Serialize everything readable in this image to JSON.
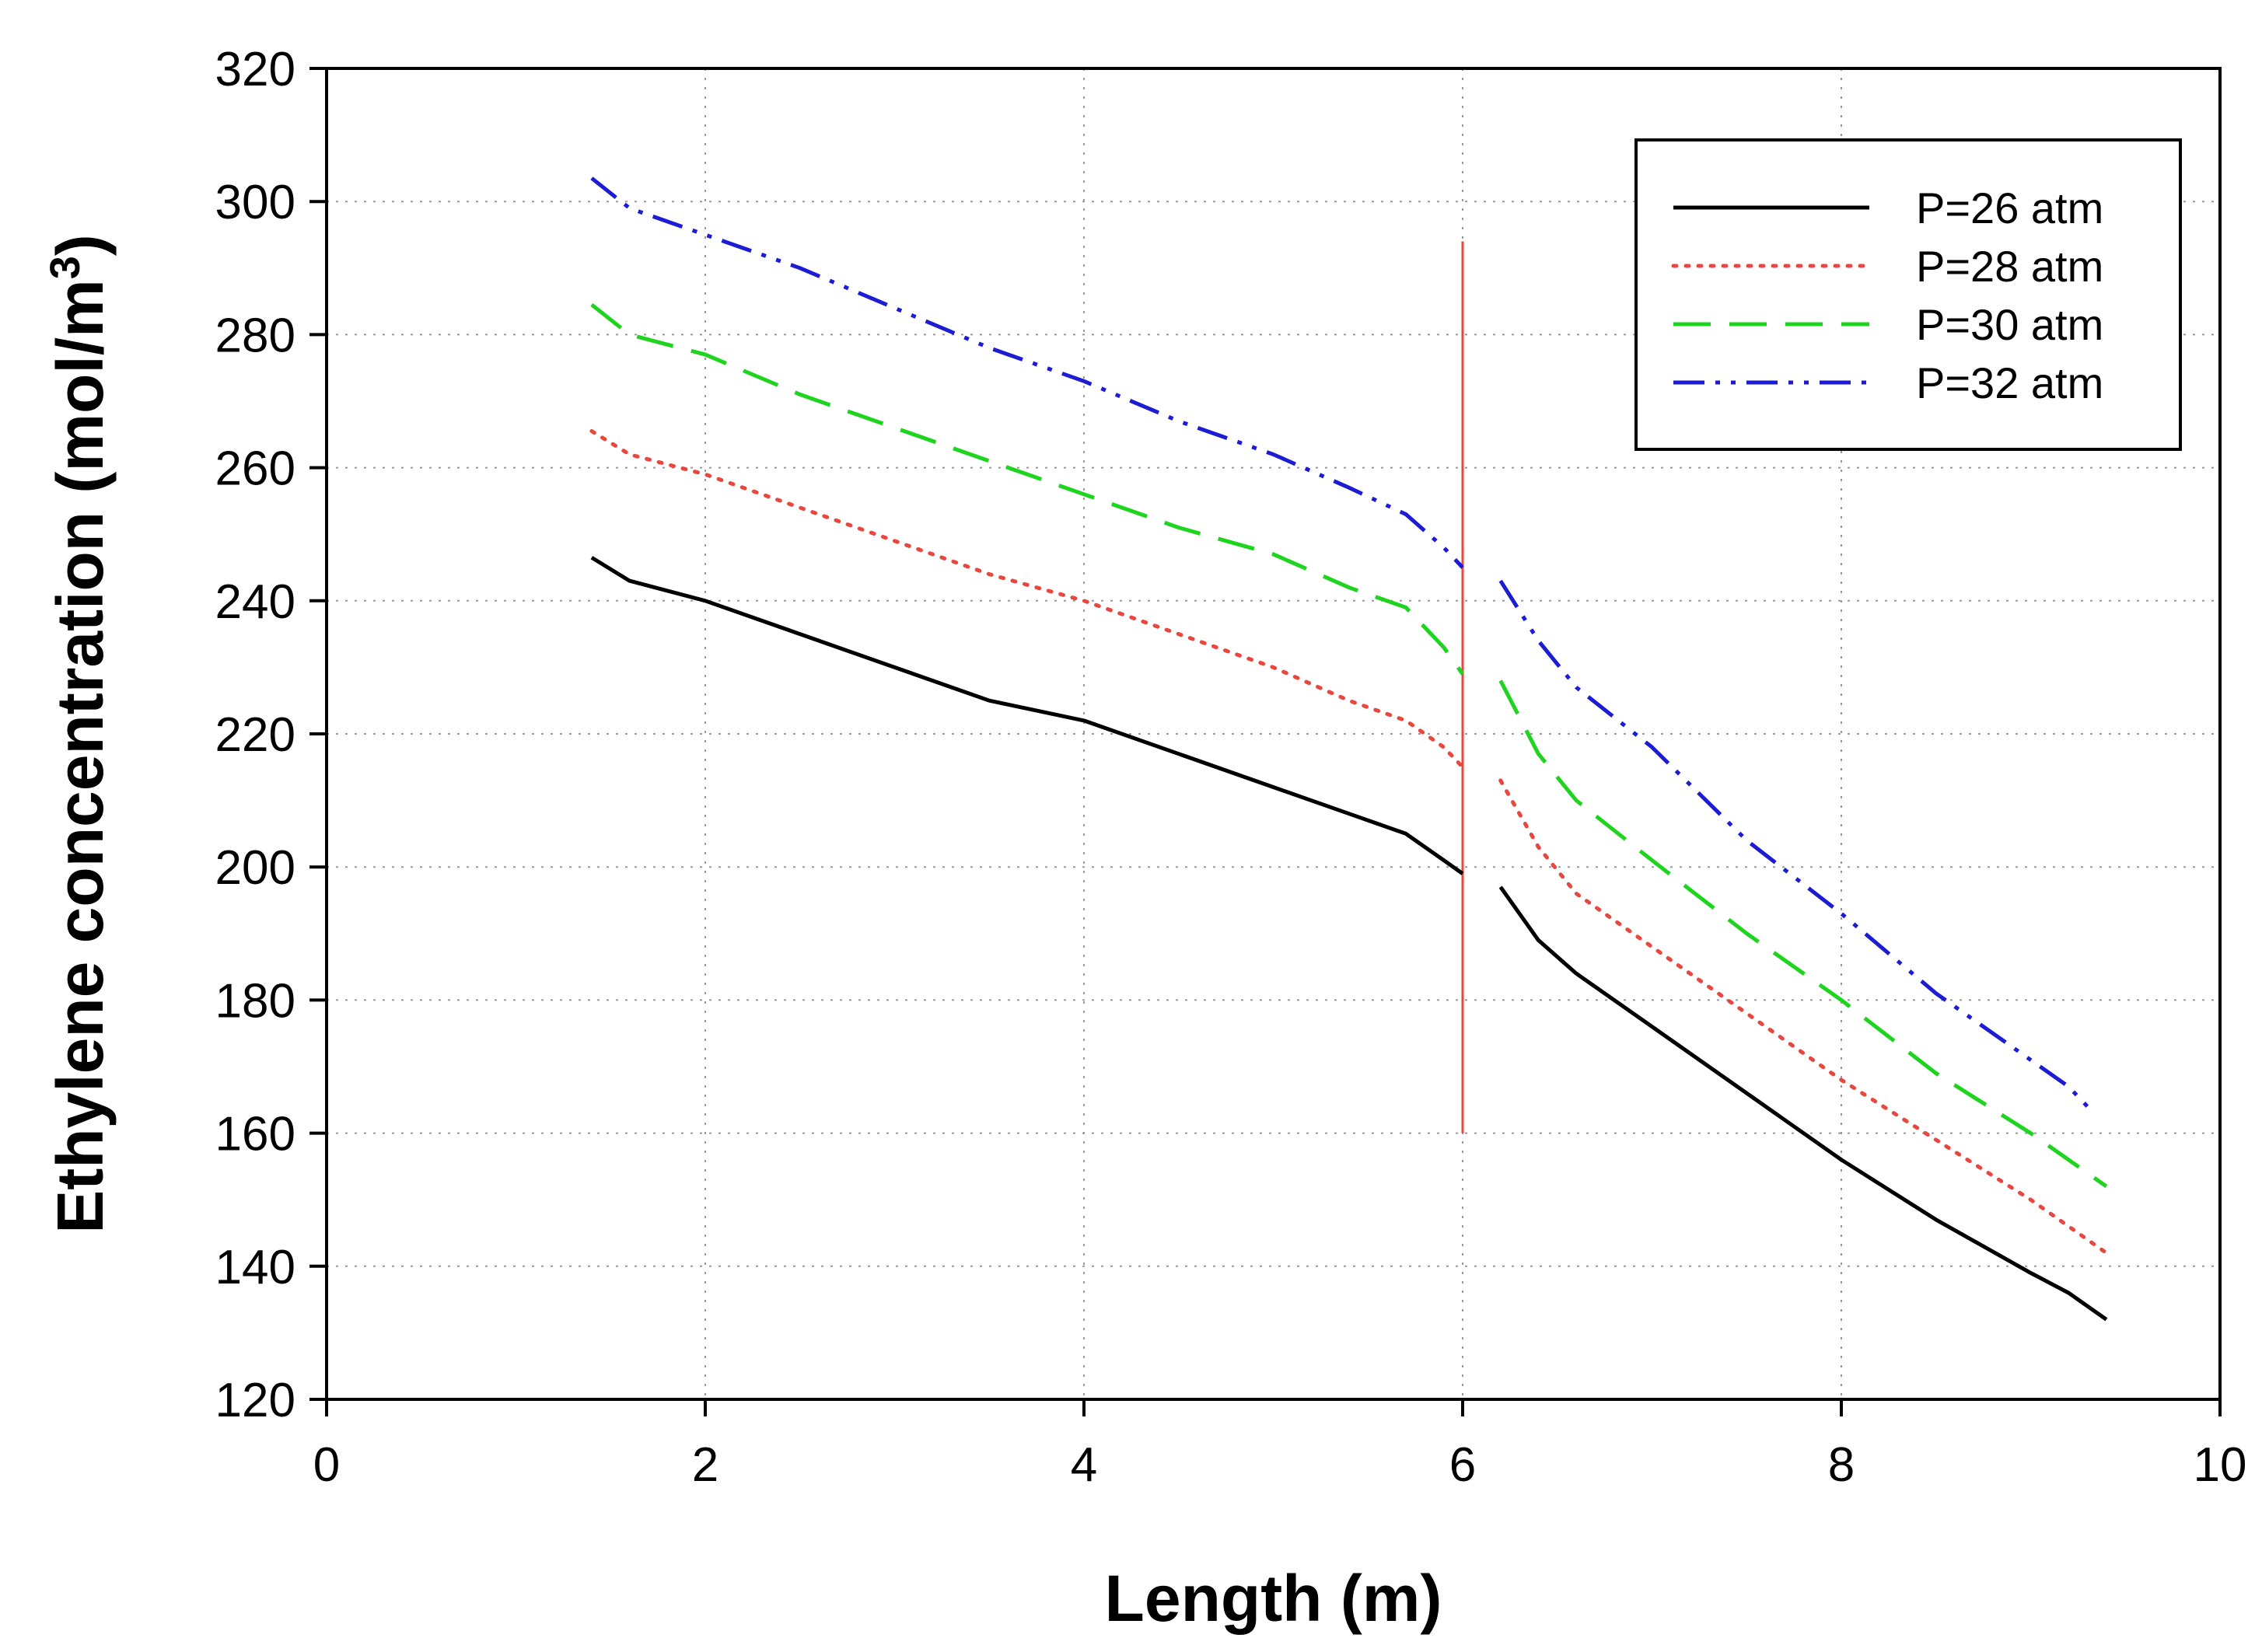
{
  "chart_data": {
    "type": "line",
    "title": "",
    "xlabel": "Length (m)",
    "ylabel": "Ethylene concentration (mol/m",
    "ylabel_sup": "3",
    "ylabel_close": ")",
    "xlim": [
      0,
      10
    ],
    "ylim": [
      120,
      320
    ],
    "xticks": [
      "0",
      "2",
      "4",
      "6",
      "8",
      "10"
    ],
    "yticks": [
      "120",
      "140",
      "160",
      "180",
      "200",
      "220",
      "240",
      "260",
      "280",
      "300",
      "320"
    ],
    "grid": "dotted",
    "legend_position": "top-right",
    "divider": {
      "x": 6.0,
      "y_from": 160,
      "y_to": 294,
      "color": "#e8473f"
    },
    "series": [
      {
        "name": "P=26 atm",
        "color": "#000000",
        "style": "solid",
        "segments": [
          {
            "x": [
              1.4,
              1.6,
              2.0,
              2.5,
              3.0,
              3.5,
              4.0,
              4.5,
              5.0,
              5.4,
              5.7,
              5.9,
              6.0
            ],
            "y": [
              246.5,
              243,
              240,
              235,
              230,
              225,
              222,
              217,
              212,
              208,
              205,
              201,
              199
            ]
          },
          {
            "x": [
              6.2,
              6.4,
              6.6,
              7.0,
              7.5,
              8.0,
              8.5,
              9.0,
              9.2,
              9.4
            ],
            "y": [
              197,
              189,
              184,
              176,
              166,
              156,
              147,
              139,
              136,
              132
            ]
          }
        ]
      },
      {
        "name": "P=28 atm",
        "color": "#e8473f",
        "style": "dotted",
        "segments": [
          {
            "x": [
              1.4,
              1.6,
              2.0,
              2.5,
              3.0,
              3.5,
              4.0,
              4.5,
              5.0,
              5.4,
              5.7,
              5.9,
              6.0
            ],
            "y": [
              265.5,
              262,
              259,
              254,
              249,
              244,
              240,
              235,
              230,
              225,
              222,
              218,
              215
            ]
          },
          {
            "x": [
              6.2,
              6.4,
              6.6,
              7.0,
              7.5,
              8.0,
              8.5,
              9.0,
              9.2,
              9.4
            ],
            "y": [
              213,
              203,
              196,
              188,
              178,
              168,
              159,
              150,
              146,
              142
            ]
          }
        ]
      },
      {
        "name": "P=30 atm",
        "color": "#1ed41e",
        "style": "dashed",
        "segments": [
          {
            "x": [
              1.4,
              1.6,
              2.0,
              2.5,
              3.0,
              3.5,
              4.0,
              4.5,
              5.0,
              5.4,
              5.7,
              5.9,
              6.0
            ],
            "y": [
              284.5,
              280,
              277,
              271,
              266,
              261,
              256,
              251,
              247,
              242,
              239,
              233,
              229
            ]
          },
          {
            "x": [
              6.2,
              6.4,
              6.6,
              7.0,
              7.5,
              8.0,
              8.5,
              9.0,
              9.2,
              9.4
            ],
            "y": [
              228,
              217,
              210,
              201,
              190,
              180,
              169,
              160,
              156,
              152
            ]
          }
        ]
      },
      {
        "name": "P=32 atm",
        "color": "#1c1cd4",
        "style": "dashdotdot",
        "segments": [
          {
            "x": [
              1.4,
              1.6,
              2.0,
              2.5,
              3.0,
              3.5,
              4.0,
              4.5,
              5.0,
              5.4,
              5.7,
              5.9,
              6.0
            ],
            "y": [
              303.5,
              299,
              295,
              290,
              284,
              278,
              273,
              267,
              262,
              257,
              253,
              248,
              245
            ]
          },
          {
            "x": [
              6.2,
              6.4,
              6.6,
              7.0,
              7.5,
              8.0,
              8.5,
              9.0,
              9.2,
              9.3
            ],
            "y": [
              243,
              234,
              227,
              218,
              204,
              193,
              181,
              171,
              167,
              164
            ]
          }
        ]
      }
    ]
  }
}
